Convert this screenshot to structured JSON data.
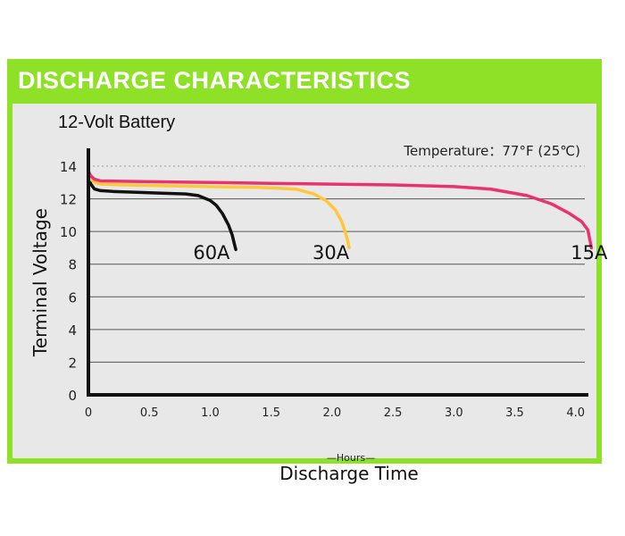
{
  "header": {
    "title": "DISCHARGE CHARACTERISTICS"
  },
  "colors": {
    "accent": "#8ee126",
    "panel": "#e8e8e8",
    "series_60A": "#111111",
    "series_30A": "#ffc83a",
    "series_15A": "#e8336e"
  },
  "chart_data": {
    "type": "line",
    "title": "12-Volt Battery",
    "annotation": "Temperature：77°F (25℃)",
    "xlabel": "Discharge Time",
    "xunit": "—Hours—",
    "ylabel": "Terminal Voltage",
    "xlim": [
      0,
      4.2
    ],
    "ylim": [
      0,
      15
    ],
    "x_ticks": [
      "0",
      "0.5",
      "1.0",
      "1.5",
      "2.0",
      "2.5",
      "3.0",
      "3.5",
      "4.0"
    ],
    "x_tick_values": [
      0,
      0.5,
      1.0,
      1.5,
      2.0,
      2.5,
      3.0,
      3.5,
      4.0
    ],
    "y_ticks": [
      "0",
      "2",
      "4",
      "6",
      "8",
      "10",
      "12",
      "14"
    ],
    "y_tick_values": [
      0,
      2,
      4,
      6,
      8,
      10,
      12,
      14
    ],
    "grid": true,
    "series": [
      {
        "name": "60A",
        "color": "#111111",
        "x": [
          0,
          0.02,
          0.05,
          0.1,
          0.2,
          0.4,
          0.6,
          0.8,
          0.9,
          1.0,
          1.05,
          1.1,
          1.15,
          1.18,
          1.2,
          1.21
        ],
        "y": [
          13.5,
          12.9,
          12.6,
          12.5,
          12.45,
          12.4,
          12.35,
          12.3,
          12.2,
          11.9,
          11.6,
          11.1,
          10.4,
          9.8,
          9.2,
          8.9
        ]
      },
      {
        "name": "30A",
        "color": "#ffc83a",
        "x": [
          0,
          0.02,
          0.05,
          0.1,
          0.3,
          0.6,
          1.0,
          1.4,
          1.7,
          1.85,
          1.95,
          2.03,
          2.08,
          2.12,
          2.14
        ],
        "y": [
          13.6,
          13.2,
          13.0,
          12.9,
          12.85,
          12.8,
          12.75,
          12.7,
          12.6,
          12.3,
          11.9,
          11.3,
          10.6,
          9.7,
          9.0
        ]
      },
      {
        "name": "15A",
        "color": "#e8336e",
        "x": [
          0,
          0.02,
          0.05,
          0.1,
          0.5,
          1.0,
          1.5,
          2.0,
          2.5,
          3.0,
          3.3,
          3.6,
          3.8,
          3.95,
          4.05,
          4.1,
          4.13
        ],
        "y": [
          13.7,
          13.4,
          13.2,
          13.1,
          13.05,
          13.0,
          12.95,
          12.9,
          12.85,
          12.75,
          12.6,
          12.2,
          11.7,
          11.1,
          10.6,
          10.1,
          9.0
        ]
      }
    ],
    "series_labels": [
      {
        "text": "60A",
        "x": 0.86,
        "y": 8.3
      },
      {
        "text": "30A",
        "x": 1.84,
        "y": 8.3
      },
      {
        "text": "15A",
        "x": 3.96,
        "y": 8.3
      }
    ]
  }
}
